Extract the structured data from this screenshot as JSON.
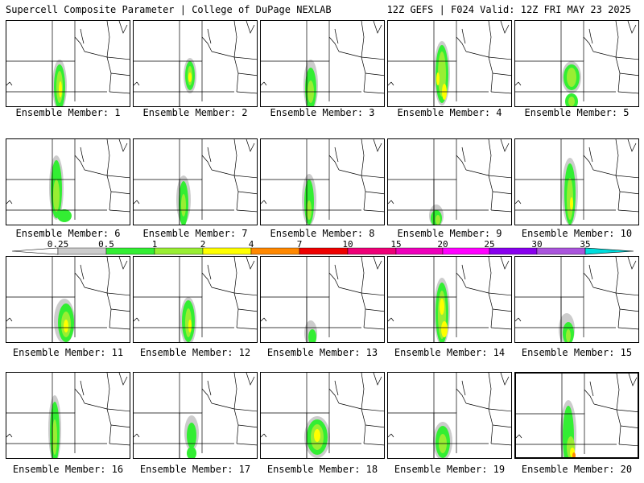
{
  "header": {
    "title_left": "Supercell Composite Parameter | College of DuPage NEXLAB",
    "title_right": "12Z GEFS | F024 Valid: 12Z FRI MAY 23 2025"
  },
  "colors": {
    "scale": [
      "#cccccc",
      "#33ee33",
      "#99ee33",
      "#ffff00",
      "#ff8800",
      "#ee0000",
      "#ee0077",
      "#ee00bb",
      "#ff00ff",
      "#8800ee",
      "#aa55dd",
      "#00dddd"
    ]
  },
  "colorbar": {
    "ticks": [
      "0.25",
      "0.5",
      "1",
      "2",
      "4",
      "7",
      "10",
      "15",
      "20",
      "25",
      "30",
      "35"
    ]
  },
  "members": [
    {
      "label": "Ensemble Member: 1"
    },
    {
      "label": "Ensemble Member: 2"
    },
    {
      "label": "Ensemble Member: 3"
    },
    {
      "label": "Ensemble Member: 4"
    },
    {
      "label": "Ensemble Member: 5"
    },
    {
      "label": "Ensemble Member: 6"
    },
    {
      "label": "Ensemble Member: 7"
    },
    {
      "label": "Ensemble Member: 8"
    },
    {
      "label": "Ensemble Member: 9"
    },
    {
      "label": "Ensemble Member: 10"
    },
    {
      "label": "Ensemble Member: 11"
    },
    {
      "label": "Ensemble Member: 12"
    },
    {
      "label": "Ensemble Member: 13"
    },
    {
      "label": "Ensemble Member: 14"
    },
    {
      "label": "Ensemble Member: 15"
    },
    {
      "label": "Ensemble Member: 16"
    },
    {
      "label": "Ensemble Member: 17"
    },
    {
      "label": "Ensemble Member: 18"
    },
    {
      "label": "Ensemble Member: 19"
    },
    {
      "label": "Ensemble Member: 20"
    }
  ]
}
